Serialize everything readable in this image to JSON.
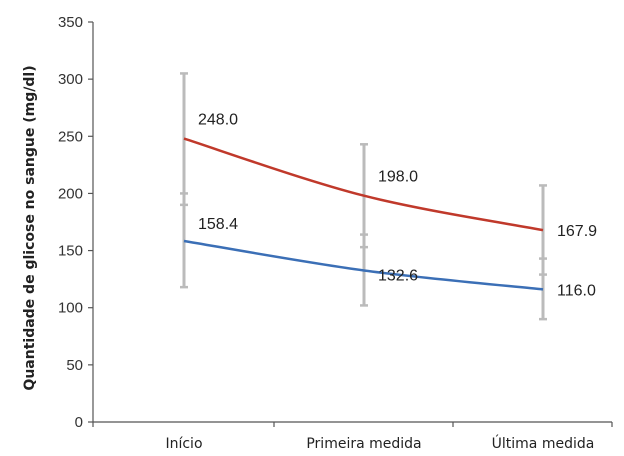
{
  "chart_data": {
    "type": "line",
    "categories": [
      "Início",
      "Primeira medida",
      "Última medida"
    ],
    "ylabel": "Quantidade de glicose no sangue (mg/dl)",
    "xlabel": "",
    "ylim": [
      0,
      350
    ],
    "yticks": [
      0,
      50,
      100,
      150,
      200,
      250,
      300,
      350
    ],
    "grid": false,
    "series": [
      {
        "color": "#c0392b",
        "values": [
          248.0,
          198.0,
          167.9
        ],
        "labels": [
          "248.0",
          "198.0",
          "167.9"
        ],
        "error_low": [
          190,
          153,
          129
        ],
        "error_high": [
          305,
          243,
          207
        ]
      },
      {
        "color": "#3b6fb6",
        "values": [
          158.4,
          132.6,
          116.0
        ],
        "labels": [
          "158.4",
          "132.6",
          "116.0"
        ],
        "error_low": [
          118,
          102,
          90
        ],
        "error_high": [
          200,
          164,
          143
        ]
      }
    ],
    "error_bar_color": "#bbbbbb"
  }
}
